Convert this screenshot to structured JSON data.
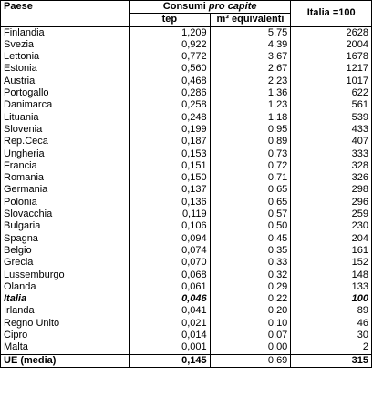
{
  "table": {
    "header": {
      "country": "Paese",
      "group": "Consumi",
      "group_italic": "pro capite",
      "col1": "tep",
      "col2": "m³ equivalenti",
      "col3": "Italia =100"
    },
    "rows": [
      [
        "Finlandia",
        "1,209",
        "5,75",
        "2628"
      ],
      [
        "Svezia",
        "0,922",
        "4,39",
        "2004"
      ],
      [
        "Lettonia",
        "0,772",
        "3,67",
        "1678"
      ],
      [
        "Estonia",
        "0,560",
        "2,67",
        "1217"
      ],
      [
        "Austria",
        "0,468",
        "2,23",
        "1017"
      ],
      [
        "Portogallo",
        "0,286",
        "1,36",
        "622"
      ],
      [
        "Danimarca",
        "0,258",
        "1,23",
        "561"
      ],
      [
        "Lituania",
        "0,248",
        "1,18",
        "539"
      ],
      [
        "Slovenia",
        "0,199",
        "0,95",
        "433"
      ],
      [
        "Rep.Ceca",
        "0,187",
        "0,89",
        "407"
      ],
      [
        "Ungheria",
        "0,153",
        "0,73",
        "333"
      ],
      [
        "Francia",
        "0,151",
        "0,72",
        "328"
      ],
      [
        "Romania",
        "0,150",
        "0,71",
        "326"
      ],
      [
        "Germania",
        "0,137",
        "0,65",
        "298"
      ],
      [
        "Polonia",
        "0,136",
        "0,65",
        "296"
      ],
      [
        "Slovacchia",
        "0,119",
        "0,57",
        "259"
      ],
      [
        "Bulgaria",
        "0,106",
        "0,50",
        "230"
      ],
      [
        "Spagna",
        "0,094",
        "0,45",
        "204"
      ],
      [
        "Belgio",
        "0,074",
        "0,35",
        "161"
      ],
      [
        "Grecia",
        "0,070",
        "0,33",
        "152"
      ],
      [
        "Lussemburgo",
        "0,068",
        "0,32",
        "148"
      ],
      [
        "Olanda",
        "0,061",
        "0,29",
        "133"
      ],
      [
        "Italia",
        "0,046",
        "0,22",
        "100"
      ],
      [
        "Irlanda",
        "0,041",
        "0,20",
        "89"
      ],
      [
        "Regno Unito",
        "0,021",
        "0,10",
        "46"
      ],
      [
        "Cipro",
        "0,014",
        "0,07",
        "30"
      ],
      [
        "Malta",
        "0,001",
        "0,00",
        "2"
      ]
    ],
    "total": [
      "UE (media)",
      "0,145",
      "0,69",
      "315"
    ]
  }
}
